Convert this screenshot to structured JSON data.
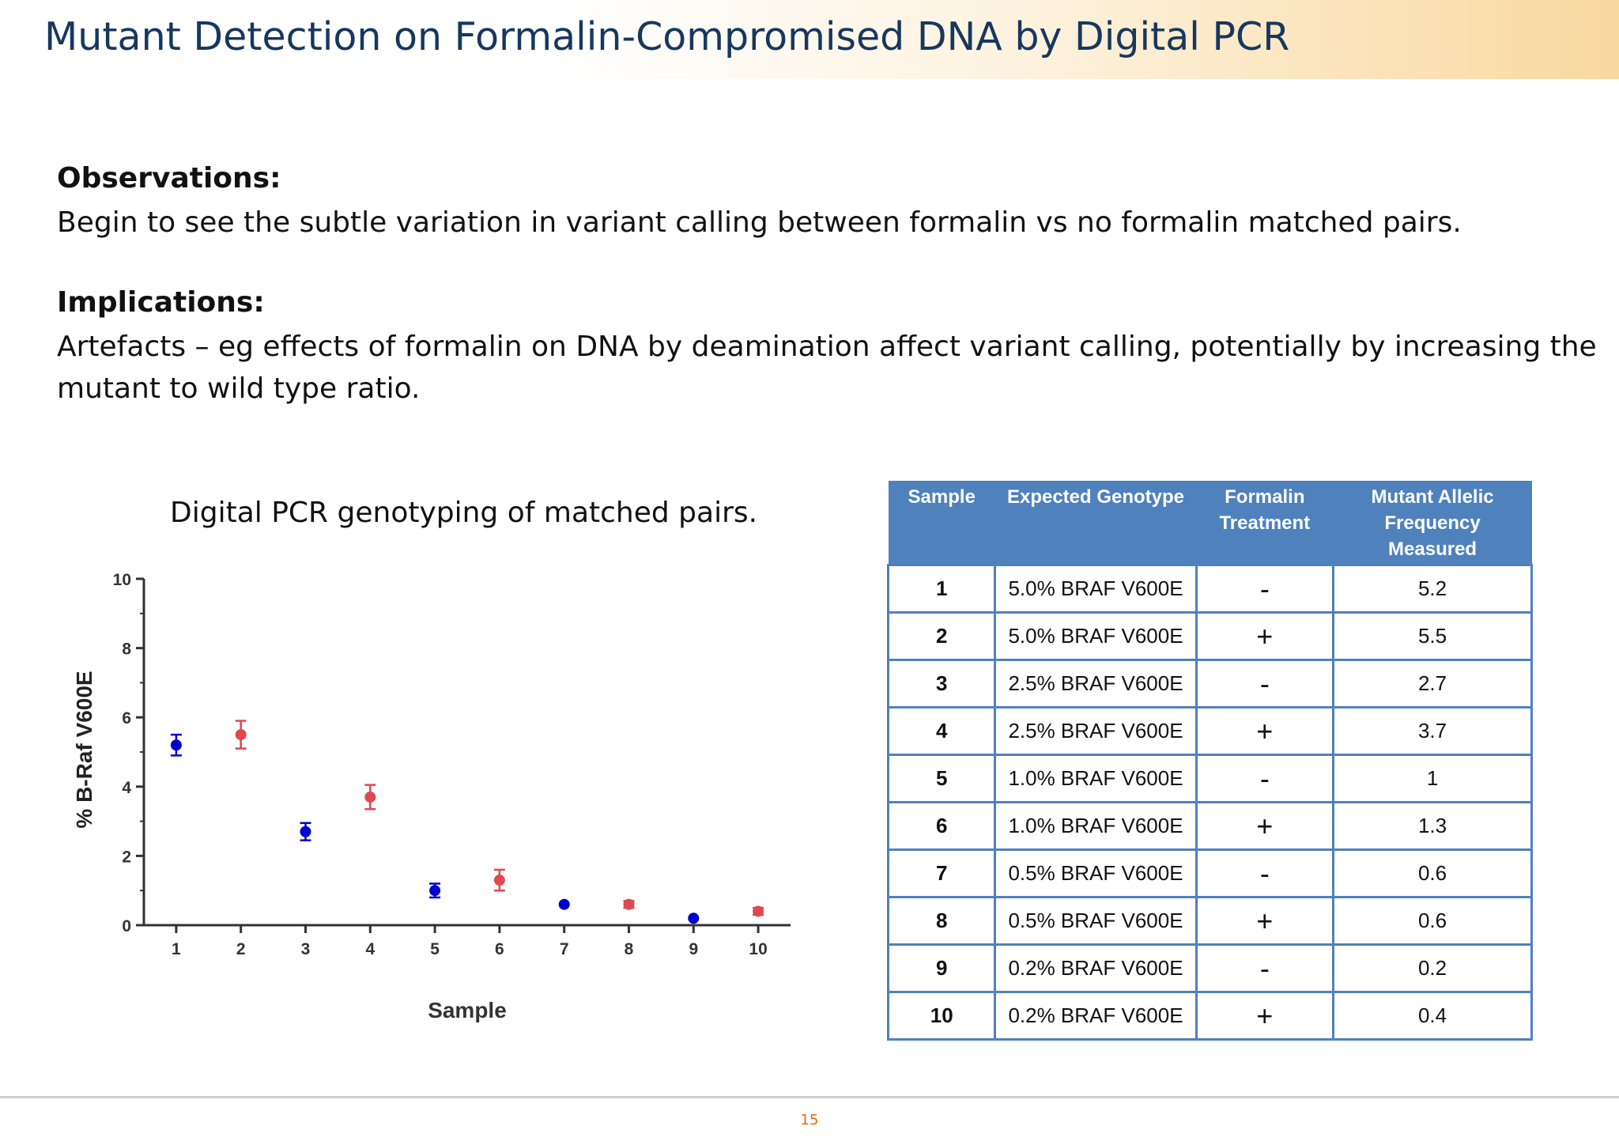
{
  "slide": {
    "title": "Mutant Detection on Formalin-Compromised DNA by Digital PCR",
    "observations_heading": "Observations:",
    "observations_text": "Begin to see the subtle variation in variant calling between formalin vs no formalin matched pairs.",
    "implications_heading": "Implications:",
    "implications_text": "Artefacts – eg effects of formalin on DNA by deamination affect variant calling, potentially by increasing the mutant to wild type ratio.",
    "chart_caption": "Digital PCR genotyping  of matched pairs.",
    "page_number": "15"
  },
  "chart_data": {
    "type": "scatter",
    "title": "",
    "xlabel": "Sample",
    "ylabel": "% B-Raf V600E",
    "x": [
      1,
      2,
      3,
      4,
      5,
      6,
      7,
      8,
      9,
      10
    ],
    "y": [
      5.2,
      5.5,
      2.7,
      3.7,
      1.0,
      1.3,
      0.6,
      0.6,
      0.2,
      0.4
    ],
    "error": [
      0.3,
      0.4,
      0.25,
      0.35,
      0.2,
      0.3,
      0.0,
      0.1,
      0.0,
      0.1
    ],
    "colors": [
      "#0000cc",
      "#e04850",
      "#0000cc",
      "#e04850",
      "#0000cc",
      "#e04850",
      "#0000cc",
      "#e04850",
      "#0000cc",
      "#e04850"
    ],
    "xticks": [
      "1",
      "2",
      "3",
      "4",
      "5",
      "6",
      "7",
      "8",
      "9",
      "10"
    ],
    "yticks": [
      "0",
      "2",
      "4",
      "6",
      "8",
      "10"
    ],
    "ylim": [
      0,
      10
    ],
    "xlim": [
      0.5,
      10.5
    ],
    "grid": false,
    "legend": "none"
  },
  "table": {
    "headers": [
      "Sample",
      "Expected Genotype",
      "Formalin Treatment",
      "Mutant Allelic Frequency Measured"
    ],
    "rows": [
      [
        "1",
        "5.0% BRAF V600E",
        "-",
        "5.2"
      ],
      [
        "2",
        "5.0% BRAF V600E",
        "+",
        "5.5"
      ],
      [
        "3",
        "2.5% BRAF V600E",
        "-",
        "2.7"
      ],
      [
        "4",
        "2.5% BRAF V600E",
        "+",
        "3.7"
      ],
      [
        "5",
        "1.0% BRAF V600E",
        "-",
        "1"
      ],
      [
        "6",
        "1.0% BRAF V600E",
        "+",
        "1.3"
      ],
      [
        "7",
        "0.5% BRAF V600E",
        "-",
        "0.6"
      ],
      [
        "8",
        "0.5% BRAF V600E",
        "+",
        "0.6"
      ],
      [
        "9",
        "0.2% BRAF V600E",
        "-",
        "0.2"
      ],
      [
        "10",
        "0.2% BRAF V600E",
        "+",
        "0.4"
      ]
    ],
    "header_color": "#4f81bd"
  }
}
